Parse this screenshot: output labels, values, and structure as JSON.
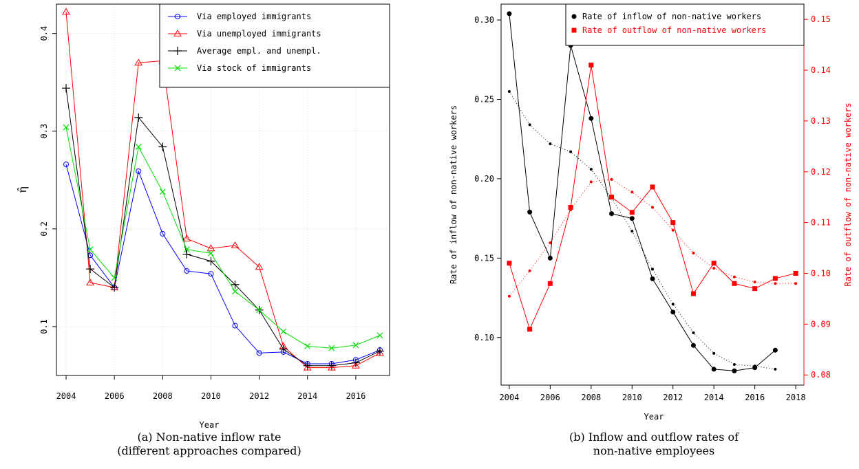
{
  "chart_data": [
    {
      "type": "line",
      "ylabel": "η̂",
      "xlabel": "Year",
      "caption_lines": [
        "(a) Non-native inflow rate",
        "(different approaches compared)"
      ],
      "xlim": [
        2003.6,
        2017.4
      ],
      "ylim": [
        0.05,
        0.43
      ],
      "x_ticks": [
        2004,
        2006,
        2008,
        2010,
        2012,
        2014,
        2016
      ],
      "y_ticks": [
        0.1,
        0.2,
        0.3,
        0.4
      ],
      "y_tick_labels": [
        "0.1",
        "0.2",
        "0.3",
        "0.4"
      ],
      "grid": true,
      "legend_position": "top-right",
      "x": [
        2004,
        2005,
        2006,
        2007,
        2008,
        2009,
        2010,
        2011,
        2012,
        2013,
        2014,
        2015,
        2016,
        2017
      ],
      "series": [
        {
          "name": "Via employed immigrants",
          "color": "#0000ff",
          "marker": "circle",
          "values": [
            0.266,
            0.173,
            0.14,
            0.259,
            0.195,
            0.157,
            0.154,
            0.101,
            0.073,
            0.074,
            0.062,
            0.062,
            0.066,
            0.076
          ]
        },
        {
          "name": "Via unemployed immigrants",
          "color": "#ff0000",
          "marker": "triangle",
          "values": [
            0.422,
            0.145,
            0.14,
            0.37,
            0.372,
            0.19,
            0.18,
            0.183,
            0.161,
            0.08,
            0.058,
            0.058,
            0.06,
            0.073
          ]
        },
        {
          "name": "Average empl. and unempl.",
          "color": "#000000",
          "marker": "plus",
          "values": [
            0.344,
            0.159,
            0.14,
            0.314,
            0.284,
            0.174,
            0.167,
            0.143,
            0.117,
            0.077,
            0.06,
            0.06,
            0.063,
            0.075
          ]
        },
        {
          "name": "Via stock of immigrants",
          "color": "#00dd00",
          "marker": "cross",
          "values": [
            0.304,
            0.179,
            0.15,
            0.284,
            0.238,
            0.179,
            0.175,
            0.136,
            0.117,
            0.095,
            0.08,
            0.078,
            0.081,
            0.091
          ]
        }
      ]
    },
    {
      "type": "line",
      "xlabel": "Year",
      "ylabel": "Rate of inflow of non-native workers",
      "ylabel_right": "Rate of outflow of non-native workers",
      "caption_lines": [
        "(b) Inflow and outflow rates of",
        "non-native employees"
      ],
      "xlim": [
        2003.6,
        2018.4
      ],
      "x_ticks": [
        2004,
        2006,
        2008,
        2010,
        2012,
        2014,
        2016,
        2018
      ],
      "ylim_left": [
        0.07,
        0.31
      ],
      "y_ticks_left": [
        0.1,
        0.15,
        0.2,
        0.25,
        0.3
      ],
      "y_tick_labels_left": [
        "0.10",
        "0.15",
        "0.20",
        "0.25",
        "0.30"
      ],
      "ylim_right": [
        0.078,
        0.153
      ],
      "y_ticks_right": [
        0.08,
        0.09,
        0.1,
        0.11,
        0.12,
        0.13,
        0.14,
        0.15
      ],
      "y_tick_labels_right": [
        "0.08",
        "0.09",
        "0.10",
        "0.11",
        "0.12",
        "0.13",
        "0.14",
        "0.15"
      ],
      "legend_position": "top-right",
      "series": [
        {
          "name": "Rate of inflow of non-native workers",
          "axis": "left",
          "color": "#000000",
          "marker": "circle",
          "x": [
            2004,
            2005,
            2006,
            2007,
            2008,
            2009,
            2010,
            2011,
            2012,
            2013,
            2014,
            2015,
            2016,
            2017
          ],
          "values": [
            0.304,
            0.179,
            0.15,
            0.284,
            0.238,
            0.178,
            0.175,
            0.137,
            0.116,
            0.095,
            0.08,
            0.079,
            0.081,
            0.092
          ],
          "trend": [
            0.255,
            0.234,
            0.222,
            0.217,
            0.206,
            0.188,
            0.167,
            0.143,
            0.121,
            0.103,
            0.09,
            0.083,
            0.082,
            0.08
          ]
        },
        {
          "name": "Rate of outflow of non-native workers",
          "axis": "right",
          "color": "#ff0000",
          "marker": "square",
          "x": [
            2004,
            2005,
            2006,
            2007,
            2008,
            2009,
            2010,
            2011,
            2012,
            2013,
            2014,
            2015,
            2016,
            2017,
            2018
          ],
          "values": [
            0.102,
            0.089,
            0.098,
            0.113,
            0.141,
            0.115,
            0.112,
            0.117,
            0.11,
            0.096,
            0.102,
            0.098,
            0.097,
            0.099,
            0.1
          ],
          "trend": [
            0.0955,
            0.1005,
            0.106,
            0.1125,
            0.118,
            0.1185,
            0.116,
            0.113,
            0.1085,
            0.104,
            0.101,
            0.0993,
            0.0983,
            0.098,
            0.098
          ]
        }
      ]
    }
  ]
}
